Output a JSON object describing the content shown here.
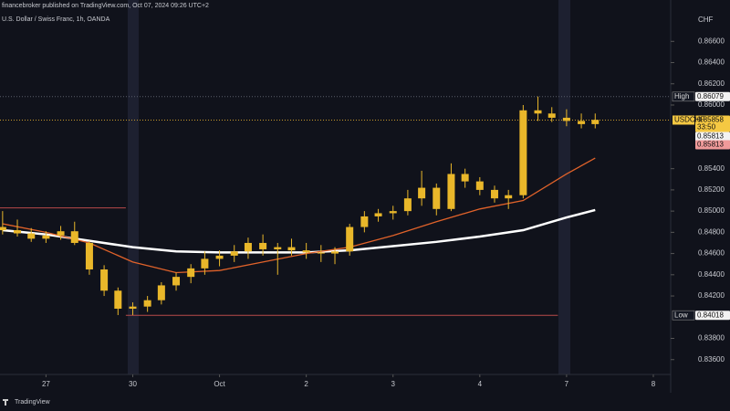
{
  "header": {
    "publisher": "financebroker published on TradingView.com, Oct 07, 2024 09:26 UTC+2",
    "symbol": "U.S. Dollar / Swiss Franc, 1h, OANDA"
  },
  "chart_data": {
    "type": "candlestick",
    "y_unit": "CHF",
    "candle_color": "#e9b72a",
    "x": [
      0.5,
      0.67,
      0.83,
      1,
      1.17,
      1.33,
      1.5,
      1.67,
      1.83,
      2,
      2.17,
      2.33,
      2.5,
      2.67,
      2.83,
      3,
      3.17,
      3.33,
      3.5,
      3.67,
      3.83,
      4,
      4.17,
      4.33,
      4.5,
      4.67,
      4.83,
      5,
      5.17,
      5.33,
      5.5,
      5.67,
      5.83,
      6,
      6.17,
      6.33,
      6.5,
      6.67,
      6.83,
      7,
      7.17,
      7.33
    ],
    "open": [
      0.8485,
      0.8482,
      0.8479,
      0.8474,
      0.8477,
      0.8481,
      0.847,
      0.8445,
      0.8425,
      0.8408,
      0.841,
      0.8416,
      0.843,
      0.8438,
      0.8446,
      0.8455,
      0.8458,
      0.8462,
      0.847,
      0.8464,
      0.8466,
      0.8463,
      0.8461,
      0.846,
      0.8462,
      0.8485,
      0.8495,
      0.8498,
      0.85,
      0.8512,
      0.8522,
      0.8502,
      0.8535,
      0.8528,
      0.852,
      0.8512,
      0.8515,
      0.8595,
      0.8592,
      0.8588,
      0.8585,
      0.8582
    ],
    "high": [
      0.85,
      0.8492,
      0.8484,
      0.8481,
      0.8486,
      0.849,
      0.8472,
      0.8449,
      0.8428,
      0.8414,
      0.842,
      0.8433,
      0.8442,
      0.845,
      0.8462,
      0.8463,
      0.8468,
      0.8475,
      0.8478,
      0.847,
      0.8474,
      0.847,
      0.8468,
      0.8466,
      0.8488,
      0.85,
      0.8502,
      0.8505,
      0.852,
      0.8538,
      0.8526,
      0.8545,
      0.854,
      0.8532,
      0.8524,
      0.852,
      0.86,
      0.8608,
      0.8598,
      0.8596,
      0.8592,
      0.8592
    ],
    "low": [
      0.8478,
      0.8476,
      0.8471,
      0.847,
      0.8473,
      0.8468,
      0.844,
      0.842,
      0.8402,
      0.8402,
      0.8405,
      0.8412,
      0.8425,
      0.8432,
      0.844,
      0.8448,
      0.8452,
      0.8455,
      0.8458,
      0.844,
      0.8458,
      0.8455,
      0.8452,
      0.845,
      0.8458,
      0.848,
      0.849,
      0.8492,
      0.8496,
      0.8505,
      0.8496,
      0.85,
      0.8522,
      0.8515,
      0.8508,
      0.8502,
      0.8512,
      0.8585,
      0.8584,
      0.858,
      0.8578,
      0.8578
    ],
    "close": [
      0.8482,
      0.8479,
      0.8474,
      0.8477,
      0.8481,
      0.847,
      0.8445,
      0.8425,
      0.8408,
      0.841,
      0.8416,
      0.843,
      0.8438,
      0.8446,
      0.8455,
      0.8458,
      0.8462,
      0.847,
      0.8464,
      0.8466,
      0.8463,
      0.8461,
      0.846,
      0.8462,
      0.8485,
      0.8495,
      0.8498,
      0.85,
      0.8512,
      0.8522,
      0.8502,
      0.8535,
      0.8528,
      0.852,
      0.8512,
      0.8515,
      0.8595,
      0.8592,
      0.8588,
      0.8585,
      0.8582,
      0.8586
    ],
    "lines": [
      {
        "color": "#ffffff",
        "x": [
          0.5,
          1,
          1.5,
          2,
          2.5,
          3,
          3.5,
          4,
          4.5,
          5,
          5.5,
          6,
          6.5,
          7,
          7.33
        ],
        "values": [
          0.8482,
          0.8478,
          0.8472,
          0.8466,
          0.8462,
          0.8461,
          0.8461,
          0.8461,
          0.8463,
          0.8467,
          0.8471,
          0.8476,
          0.8482,
          0.8494,
          0.8501
        ]
      },
      {
        "color": "#e0622a",
        "x": [
          0.5,
          1,
          1.5,
          2,
          2.5,
          3,
          3.5,
          4,
          4.5,
          5,
          5.5,
          6,
          6.5,
          7,
          7.33
        ],
        "values": [
          0.8488,
          0.848,
          0.847,
          0.8452,
          0.8442,
          0.8444,
          0.8452,
          0.846,
          0.8466,
          0.8477,
          0.849,
          0.8502,
          0.851,
          0.8535,
          0.855
        ]
      }
    ],
    "levels": [
      {
        "value": 0.8503,
        "x": [
          0.47,
          1.92
        ],
        "color": "#b84a4a"
      },
      {
        "value": 0.84018,
        "x": [
          1.92,
          6.9
        ],
        "color": "#b84a4a"
      }
    ],
    "tags": [
      {
        "label": "High",
        "value": 0.86079,
        "color": "#f2f2f2",
        "line_color": "#5a5e6a"
      },
      {
        "label": "USDCHF",
        "value": 0.85858,
        "countdown": "33:50",
        "color": "#f5c842",
        "line_color": "#c99a2a"
      },
      {
        "value": 0.85813,
        "color": "#f2f2f2"
      },
      {
        "value": 0.85813,
        "color": "#f09a9a"
      },
      {
        "label": "Low",
        "value": 0.84018,
        "color": "#f2f2f2"
      }
    ],
    "xlim": [
      0.47,
      8.2
    ],
    "ylim": [
      0.8346,
      0.8699
    ],
    "xticks": [
      {
        "value": 1,
        "label": "27"
      },
      {
        "value": 2,
        "label": "30"
      },
      {
        "value": 3,
        "label": "Oct"
      },
      {
        "value": 4,
        "label": "2"
      },
      {
        "value": 5,
        "label": "3"
      },
      {
        "value": 6,
        "label": "4"
      },
      {
        "value": 7,
        "label": "7"
      },
      {
        "value": 8,
        "label": "8"
      }
    ],
    "yticks": [
      {
        "value": 0.866,
        "label": "0.86600"
      },
      {
        "value": 0.864,
        "label": "0.86400"
      },
      {
        "value": 0.862,
        "label": "0.86200"
      },
      {
        "value": 0.86,
        "label": "0.86000"
      },
      {
        "value": 0.854,
        "label": "0.85400"
      },
      {
        "value": 0.852,
        "label": "0.85200"
      },
      {
        "value": 0.85,
        "label": "0.85000"
      },
      {
        "value": 0.848,
        "label": "0.84800"
      },
      {
        "value": 0.846,
        "label": "0.84600"
      },
      {
        "value": 0.844,
        "label": "0.84400"
      },
      {
        "value": 0.842,
        "label": "0.84200"
      },
      {
        "value": 0.838,
        "label": "0.83800"
      },
      {
        "value": 0.836,
        "label": "0.83600"
      }
    ]
  },
  "footer": {
    "brand": "TradingView"
  }
}
